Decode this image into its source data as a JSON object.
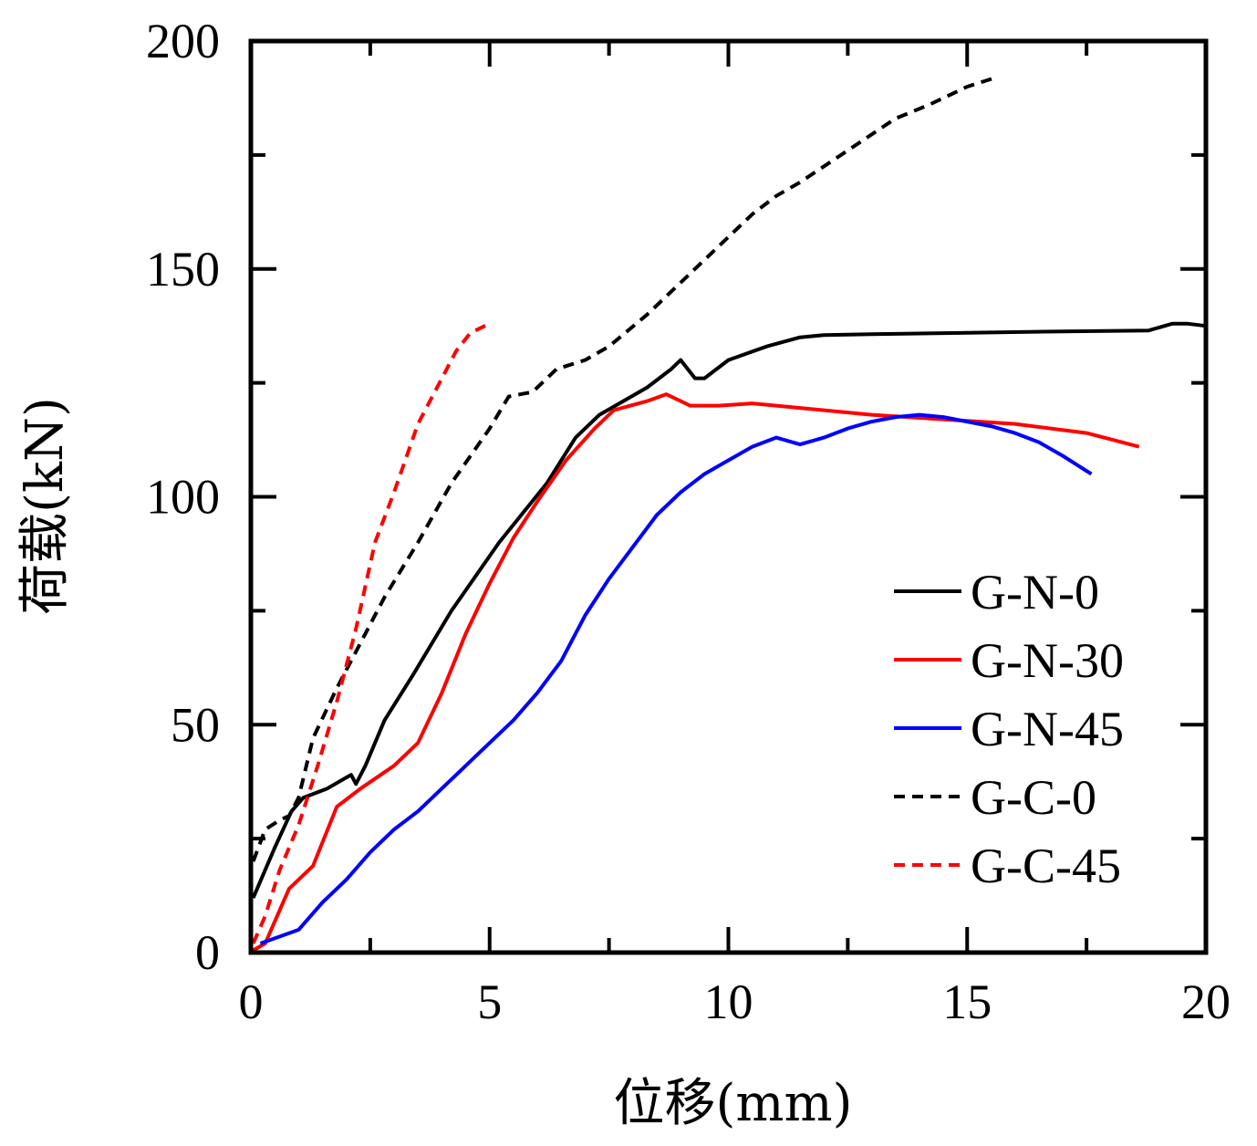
{
  "chart_data": {
    "type": "line",
    "title": "",
    "xlabel": "位移(mm)",
    "ylabel": "荷载(kN)",
    "xlim": [
      0,
      20
    ],
    "ylim": [
      0,
      200
    ],
    "xticks": [
      0,
      5,
      10,
      15,
      20
    ],
    "yticks": [
      0,
      50,
      100,
      150,
      200
    ],
    "xtick_labels": [
      "0",
      "5",
      "10",
      "15",
      "20"
    ],
    "ytick_labels": [
      "0",
      "50",
      "100",
      "150",
      "200"
    ],
    "grid": false,
    "legend_position": "lower-right",
    "series": [
      {
        "name": "G-N-0",
        "color": "#000000",
        "style": "solid",
        "x": [
          0.05,
          0.5,
          0.85,
          1.1,
          1.6,
          2.1,
          2.2,
          2.4,
          2.8,
          3.4,
          4.2,
          5.2,
          6.2,
          6.8,
          7.3,
          8.3,
          8.8,
          9.0,
          9.3,
          9.5,
          10.0,
          10.8,
          11.5,
          12.0,
          13.0,
          15.0,
          17.0,
          18.8,
          19.3,
          19.6,
          20.0
        ],
        "y": [
          12,
          23,
          31,
          34,
          36,
          39,
          37,
          41,
          51,
          61,
          75,
          90,
          103,
          113,
          118,
          124,
          128,
          130,
          126,
          126,
          130,
          133,
          135,
          135.5,
          135.7,
          136,
          136.3,
          136.5,
          138,
          138,
          137.5
        ]
      },
      {
        "name": "G-N-30",
        "color": "#ff0000",
        "style": "solid",
        "x": [
          0.05,
          0.3,
          0.8,
          1.3,
          1.8,
          2.3,
          3.0,
          3.5,
          4.0,
          4.5,
          5.0,
          5.5,
          6.0,
          6.6,
          7.2,
          7.6,
          8.3,
          8.7,
          9.2,
          9.8,
          10.5,
          11.5,
          13.0,
          14.5,
          16.0,
          17.5,
          18.6
        ],
        "y": [
          0.5,
          2,
          14,
          19,
          32,
          36,
          41,
          46,
          57,
          70,
          81,
          91,
          99,
          108,
          115,
          119,
          121,
          122.5,
          120,
          120,
          120.5,
          119.5,
          118,
          117,
          116,
          114,
          111
        ]
      },
      {
        "name": "G-N-45",
        "color": "#0000ff",
        "style": "solid",
        "x": [
          0.2,
          1.0,
          1.5,
          2.0,
          2.5,
          3.0,
          3.5,
          4.0,
          4.5,
          5.0,
          5.5,
          6.0,
          6.5,
          7.0,
          7.5,
          8.0,
          8.5,
          9.0,
          9.5,
          10.0,
          10.5,
          11.0,
          11.5,
          12.0,
          12.5,
          13.0,
          13.5,
          14.0,
          14.5,
          15.0,
          15.5,
          16.0,
          16.5,
          17.0,
          17.6
        ],
        "y": [
          2,
          5,
          11,
          16,
          22,
          27,
          31,
          36,
          41,
          46,
          51,
          57,
          64,
          74,
          82,
          89,
          96,
          101,
          105,
          108,
          111,
          113,
          111.5,
          113,
          115,
          116.5,
          117.5,
          118,
          117.5,
          116.5,
          115.5,
          114,
          112,
          109,
          105
        ]
      },
      {
        "name": "G-C-0",
        "color": "#000000",
        "style": "dashed",
        "x": [
          0.05,
          0.3,
          0.6,
          0.8,
          1.0,
          1.3,
          1.8,
          2.3,
          2.8,
          3.5,
          4.2,
          5.0,
          5.4,
          5.9,
          6.4,
          7.0,
          7.5,
          8.3,
          9.0,
          9.8,
          10.5,
          11.0,
          11.5,
          12.5,
          13.5,
          14.2,
          15.0,
          15.6
        ],
        "y": [
          20,
          27,
          29,
          30,
          34,
          47,
          58,
          68,
          78,
          90,
          103,
          115,
          122,
          123,
          128,
          130,
          133,
          140,
          147,
          155,
          162,
          166,
          169,
          176,
          183,
          186,
          190,
          192
        ]
      },
      {
        "name": "G-C-45",
        "color": "#ff0000",
        "style": "dashed",
        "x": [
          0.05,
          0.3,
          0.6,
          1.0,
          1.4,
          1.8,
          2.2,
          2.6,
          3.0,
          3.5,
          3.9,
          4.3,
          4.6,
          5.0
        ],
        "y": [
          2,
          8,
          18,
          28,
          41,
          55,
          71,
          90,
          101,
          116,
          124,
          132,
          136,
          138
        ]
      }
    ]
  }
}
